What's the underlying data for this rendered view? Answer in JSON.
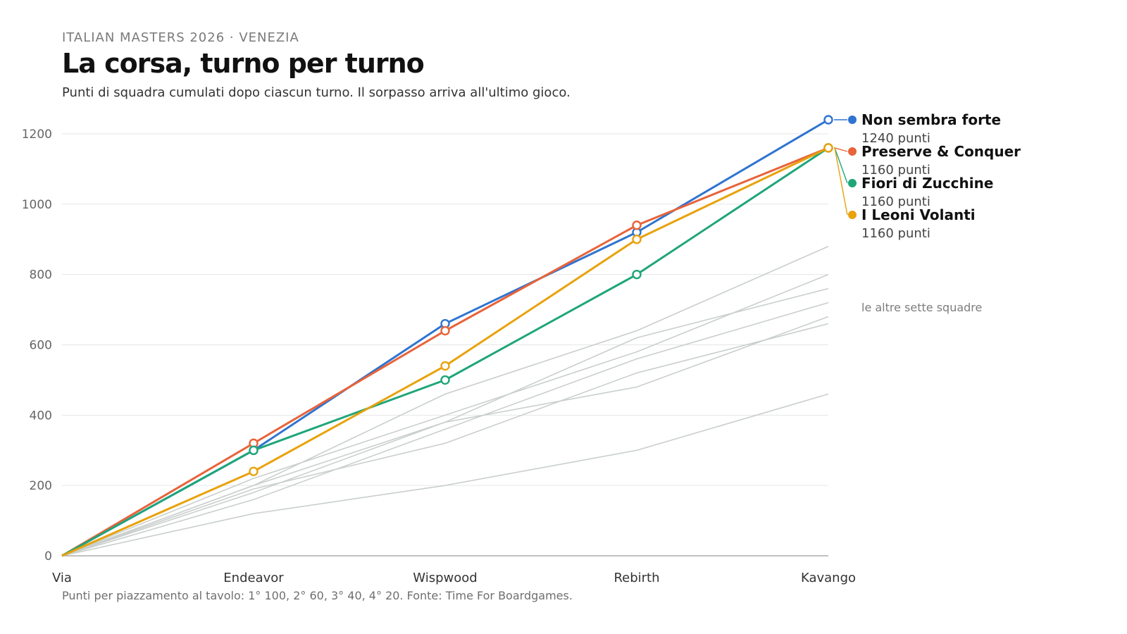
{
  "header": {
    "kicker": "ITALIAN MASTERS 2026 · VENEZIA",
    "title": "La corsa, turno per turno",
    "subtitle": "Punti di squadra cumulati dopo ciascun turno. Il sorpasso arriva all'ultimo gioco."
  },
  "footer": {
    "note": "Punti per piazzamento al tavolo: 1° 100, 2° 60, 3° 40, 4° 20. Fonte: Time For Boardgames."
  },
  "chart_data": {
    "type": "line",
    "categories": [
      "Via",
      "Endeavor",
      "Wispwood",
      "Rebirth",
      "Kavango"
    ],
    "ylim": [
      0,
      1240
    ],
    "yticks": [
      0,
      200,
      400,
      600,
      800,
      1000,
      1200
    ],
    "grid": true,
    "legend": "right, direct labels",
    "series": [
      {
        "name": "Non sembra forte",
        "color": "#2f74d0",
        "values": [
          0,
          300,
          660,
          920,
          1240
        ],
        "label": "1240 punti"
      },
      {
        "name": "Preserve & Conquer",
        "color": "#e8633a",
        "values": [
          0,
          320,
          640,
          940,
          1160
        ],
        "label": "1160 punti"
      },
      {
        "name": "Fiori di Zucchine",
        "color": "#1fa57a",
        "values": [
          0,
          300,
          500,
          800,
          1160
        ],
        "label": "1160 punti"
      },
      {
        "name": "I Leoni Volanti",
        "color": "#e8a20c",
        "values": [
          0,
          240,
          540,
          900,
          1160
        ],
        "label": "1160 punti"
      }
    ],
    "others": {
      "label": "le altre sette squadre",
      "color": "#c9cfcc",
      "series": [
        [
          0,
          200,
          460,
          640,
          880
        ],
        [
          0,
          220,
          400,
          580,
          800
        ],
        [
          0,
          180,
          380,
          620,
          760
        ],
        [
          0,
          160,
          360,
          560,
          720
        ],
        [
          0,
          200,
          380,
          480,
          680
        ],
        [
          0,
          190,
          320,
          520,
          660
        ],
        [
          0,
          120,
          200,
          300,
          460
        ]
      ]
    }
  }
}
